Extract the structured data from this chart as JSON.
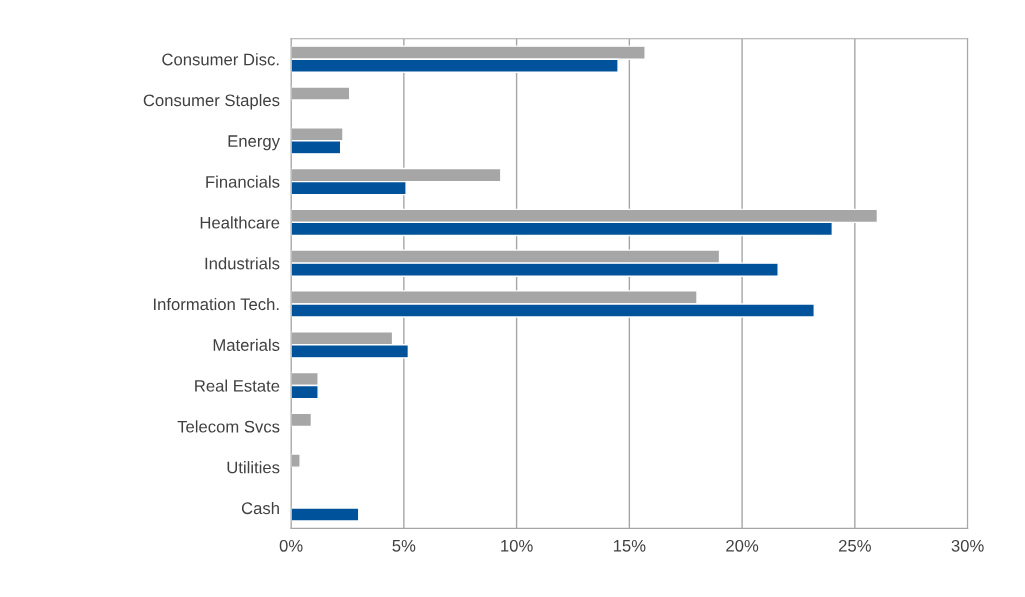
{
  "chart_data": {
    "type": "bar",
    "orientation": "horizontal",
    "categories": [
      "Consumer Disc.",
      "Consumer Staples",
      "Energy",
      "Financials",
      "Healthcare",
      "Industrials",
      "Information Tech.",
      "Materials",
      "Real Estate",
      "Telecom Svcs",
      "Utilities",
      "Cash"
    ],
    "series": [
      {
        "color": "#a6a6a6",
        "values": [
          15.7,
          2.6,
          2.3,
          9.3,
          26.0,
          19.0,
          18.0,
          4.5,
          1.2,
          0.9,
          0.4,
          null
        ]
      },
      {
        "color": "#00539b",
        "values": [
          14.5,
          null,
          2.2,
          5.1,
          24.0,
          21.6,
          23.2,
          5.2,
          1.2,
          null,
          null,
          3.0
        ]
      }
    ],
    "xlim": [
      0,
      30
    ],
    "xticks": [
      {
        "value": 0,
        "label": "0%"
      },
      {
        "value": 5,
        "label": "5%"
      },
      {
        "value": 10,
        "label": "10%"
      },
      {
        "value": 15,
        "label": "15%"
      },
      {
        "value": 20,
        "label": "20%"
      },
      {
        "value": 25,
        "label": "25%"
      },
      {
        "value": 30,
        "label": "30%"
      }
    ],
    "grid": "x",
    "legend": false
  }
}
